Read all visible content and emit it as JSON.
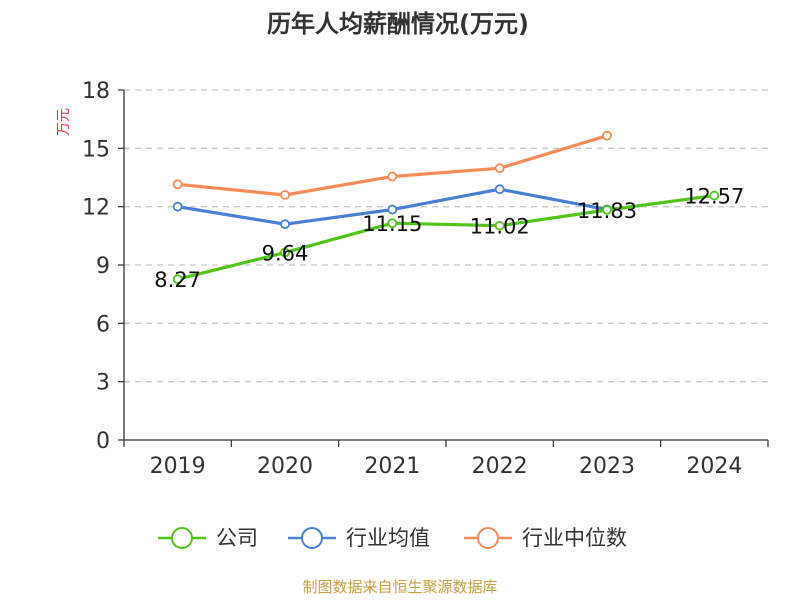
{
  "chart_data": {
    "type": "line",
    "title": "历年人均薪酬情况(万元)",
    "ylabel": "万元",
    "xlabel": "",
    "ylim": [
      0,
      18
    ],
    "yticks": [
      0,
      3,
      6,
      9,
      12,
      15,
      18
    ],
    "categories": [
      "2019",
      "2020",
      "2021",
      "2022",
      "2023",
      "2024"
    ],
    "grid": true,
    "legend_position": "bottom",
    "series": [
      {
        "name": "公司",
        "color": "#52c41a",
        "values": [
          8.27,
          9.64,
          11.15,
          11.02,
          11.83,
          12.57
        ],
        "labels": [
          "8.27",
          "9.64",
          "11.15",
          "11.02",
          "11.83",
          "12.57"
        ]
      },
      {
        "name": "行业均值",
        "color": "#4a7fd6",
        "values": [
          12.0,
          11.1,
          11.85,
          12.9,
          11.85,
          null
        ]
      },
      {
        "name": "行业中位数",
        "color": "#f68c5a",
        "values": [
          13.15,
          12.6,
          13.55,
          13.98,
          15.65,
          null
        ]
      }
    ],
    "source": "制图数据来自恒生聚源数据库"
  }
}
